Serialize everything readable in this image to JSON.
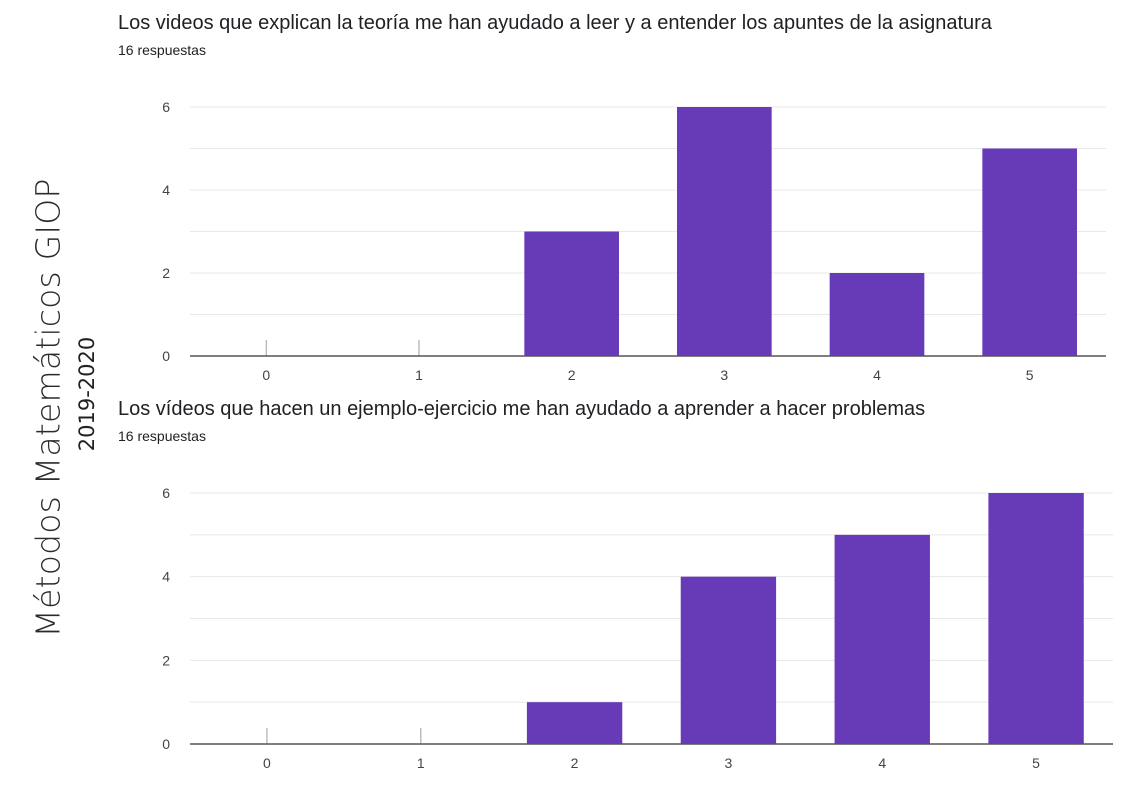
{
  "side": {
    "title": "Métodos Matemáticos GIOP",
    "year": "2019-2020"
  },
  "colors": {
    "bar": "#673ab7",
    "grid": "#e8e8e8",
    "axis": "#555555",
    "stub": "#bdbdbd"
  },
  "chart_data": [
    {
      "type": "bar",
      "title": "Los videos que explican la teoría me han ayudado a leer y a entender los apuntes de la asignatura",
      "subtitle": "16 respuestas",
      "categories": [
        "0",
        "1",
        "2",
        "3",
        "4",
        "5"
      ],
      "values": [
        0,
        0,
        3,
        6,
        2,
        5
      ],
      "yticks": [
        "0",
        "2",
        "4",
        "6"
      ],
      "ylim": [
        0,
        6
      ],
      "grid": true
    },
    {
      "type": "bar",
      "title": "Los vídeos que hacen un ejemplo-ejercicio me han ayudado a aprender a hacer problemas",
      "subtitle": "16 respuestas",
      "categories": [
        "0",
        "1",
        "2",
        "3",
        "4",
        "5"
      ],
      "values": [
        0,
        0,
        1,
        4,
        5,
        6
      ],
      "yticks": [
        "0",
        "2",
        "4",
        "6"
      ],
      "ylim": [
        0,
        6
      ],
      "grid": true
    }
  ]
}
